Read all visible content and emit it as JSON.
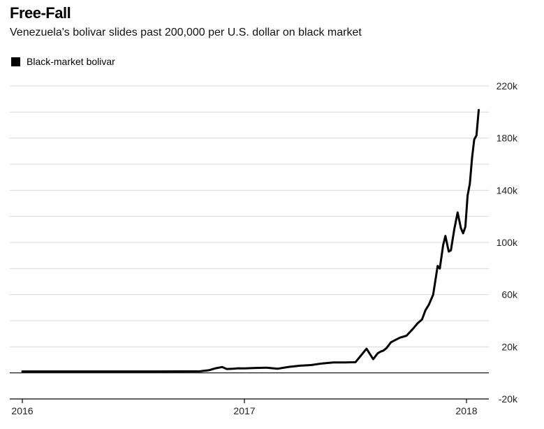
{
  "chart_data": {
    "type": "line",
    "title": "Free-Fall",
    "subtitle": "Venezuela's bolivar slides past 200,000 per U.S. dollar on black market",
    "legend": {
      "position": "top-left",
      "entries": [
        "Black-market bolivar"
      ]
    },
    "series_color": "#000000",
    "grid": true,
    "ylim": [
      -20000,
      220000
    ],
    "xlim": [
      2016.0,
      2018.12
    ],
    "y_ticks": [
      -20000,
      20000,
      60000,
      100000,
      140000,
      180000,
      220000
    ],
    "y_tick_labels": [
      "-20k",
      "20k",
      "60k",
      "100k",
      "140k",
      "180k",
      "220k"
    ],
    "x_ticks": [
      2016,
      2017,
      2018
    ],
    "x_tick_labels": [
      "2016",
      "2017",
      "2018"
    ],
    "series": [
      {
        "name": "Black-market bolivar",
        "x": [
          2016.0,
          2016.3,
          2016.6,
          2016.8,
          2016.84,
          2016.87,
          2016.9,
          2016.92,
          2016.95,
          2016.97,
          2017.0,
          2017.05,
          2017.1,
          2017.15,
          2017.2,
          2017.25,
          2017.3,
          2017.35,
          2017.4,
          2017.45,
          2017.5,
          2017.55,
          2017.58,
          2017.6,
          2017.615,
          2017.625,
          2017.64,
          2017.66,
          2017.7,
          2017.73,
          2017.76,
          2017.78,
          2017.8,
          2017.815,
          2017.83,
          2017.85,
          2017.87,
          2017.88,
          2017.895,
          2017.905,
          2017.92,
          2017.93,
          2017.945,
          2017.96,
          2017.975,
          2017.985,
          2017.995,
          2018.005,
          2018.015,
          2018.025,
          2018.035,
          2018.045,
          2018.055
        ],
        "y": [
          1100,
          1100,
          1100,
          1200,
          2000,
          3500,
          4500,
          3000,
          3200,
          3500,
          3400,
          3800,
          4000,
          3200,
          4600,
          5500,
          6000,
          7200,
          8000,
          8000,
          8200,
          18500,
          10500,
          15000,
          16500,
          17000,
          19000,
          23500,
          27000,
          28500,
          34000,
          38000,
          41000,
          48000,
          52000,
          60000,
          82000,
          80000,
          98000,
          105000,
          93000,
          94000,
          110000,
          123000,
          111000,
          107000,
          112000,
          136000,
          145000,
          165000,
          179000,
          182000,
          201500
        ]
      }
    ]
  }
}
